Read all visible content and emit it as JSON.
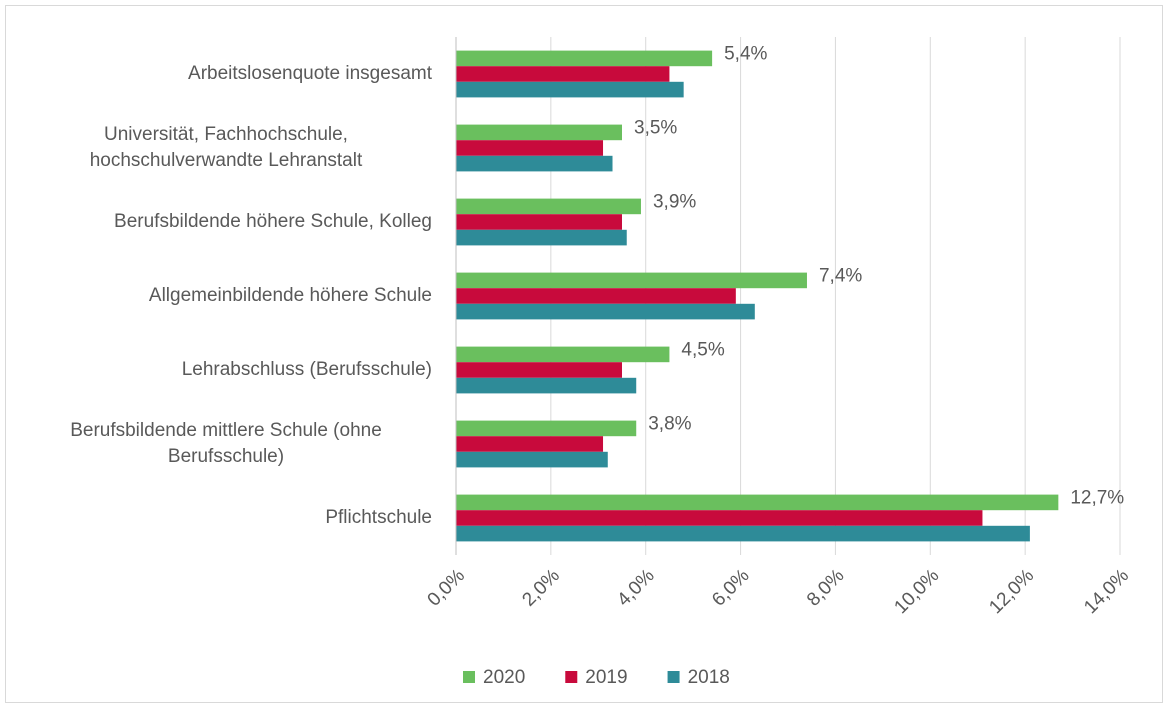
{
  "chart_data": {
    "type": "bar",
    "orientation": "horizontal",
    "categories": [
      "Arbeitslosenquote insgesamt",
      "Universität, Fachhochschule, hochschulverwandte Lehranstalt",
      "Berufsbildende höhere Schule, Kolleg",
      "Allgemeinbildende höhere Schule",
      "Lehrabschluss (Berufsschule)",
      "Berufsbildende mittlere Schule (ohne Berufsschule)",
      "Pflichtschule"
    ],
    "series": [
      {
        "name": "2020",
        "color": "#6abf5e",
        "values": [
          5.4,
          3.5,
          3.9,
          7.4,
          4.5,
          3.8,
          12.7
        ],
        "value_labels": [
          "5,4%",
          "3,5%",
          "3,9%",
          "7,4%",
          "4,5%",
          "3,8%",
          "12,7%"
        ]
      },
      {
        "name": "2019",
        "color": "#c80a3c",
        "values": [
          4.5,
          3.1,
          3.5,
          5.9,
          3.5,
          3.1,
          11.1
        ]
      },
      {
        "name": "2018",
        "color": "#2e8b98",
        "values": [
          4.8,
          3.3,
          3.6,
          6.3,
          3.8,
          3.2,
          12.1
        ]
      }
    ],
    "xlim": [
      0,
      14
    ],
    "xticks": [
      {
        "value": 0,
        "label": "0,0%"
      },
      {
        "value": 2,
        "label": "2,0%"
      },
      {
        "value": 4,
        "label": "4,0%"
      },
      {
        "value": 6,
        "label": "6,0%"
      },
      {
        "value": 8,
        "label": "8,0%"
      },
      {
        "value": 10,
        "label": "10,0%"
      },
      {
        "value": 12,
        "label": "12,0%"
      },
      {
        "value": 14,
        "label": "14,0%"
      }
    ],
    "grid": true,
    "legend": "bottom"
  }
}
